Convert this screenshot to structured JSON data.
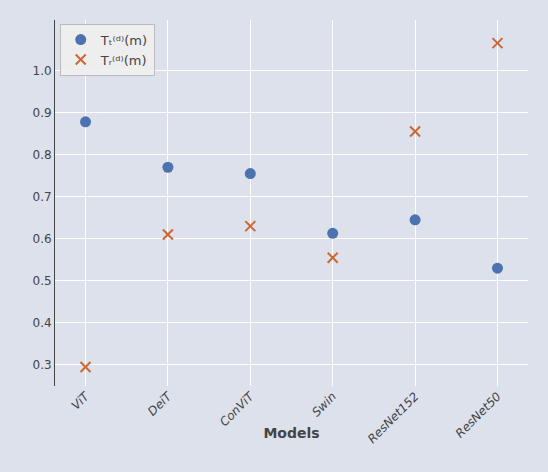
{
  "chart_data": {
    "type": "scatter",
    "xlabel": "Models",
    "categories": [
      "ViT",
      "DeiT",
      "ConViT",
      "Swin",
      "ResNet152",
      "ResNet50"
    ],
    "series": [
      {
        "name": "Tₜ⁽ᵈ⁾(m)",
        "color": "#4C72B0",
        "marker": "circle",
        "values": [
          0.878,
          0.77,
          0.755,
          0.613,
          0.645,
          0.53
        ]
      },
      {
        "name": "Tᵣ⁽ᵈ⁾(m)",
        "color": "#CC6633",
        "marker": "x",
        "values": [
          0.295,
          0.61,
          0.63,
          0.555,
          0.855,
          1.065
        ]
      }
    ],
    "background_color": "#dde1ec",
    "grid_color": "#FFFFFF",
    "ylim": [
      0.25,
      1.12
    ],
    "yticks": [
      0.3,
      0.4,
      0.5,
      0.6,
      0.7,
      0.8,
      0.9,
      {
        "value": 1.0,
        "label": "1.0"
      }
    ],
    "grid": true,
    "legend": "upper left"
  }
}
